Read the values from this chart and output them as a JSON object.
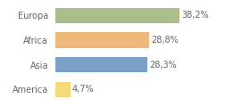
{
  "categories": [
    "America",
    "Asia",
    "Africa",
    "Europa"
  ],
  "values": [
    4.7,
    28.3,
    28.8,
    38.2
  ],
  "labels": [
    "4,7%",
    "28,3%",
    "28,8%",
    "38,2%"
  ],
  "bar_colors": [
    "#f5d97a",
    "#7b9fc7",
    "#f0b87a",
    "#a8bf8a"
  ],
  "background_color": "#ffffff",
  "xlim": [
    0,
    46
  ],
  "bar_height": 0.62,
  "label_fontsize": 7.0,
  "category_fontsize": 7.0,
  "text_color": "#666666",
  "grid_color": "#dddddd"
}
